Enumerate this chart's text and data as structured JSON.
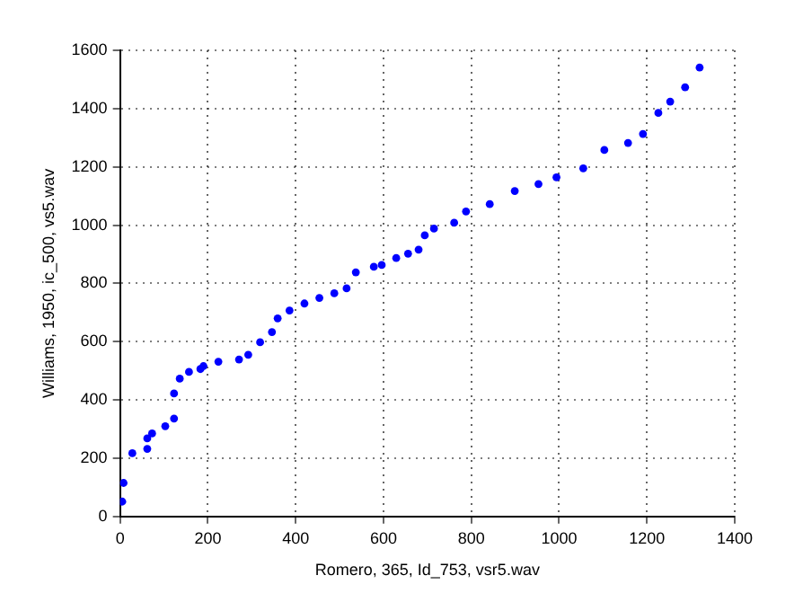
{
  "chart_data": {
    "type": "scatter",
    "xlabel": "Romero, 365, Id_753, vsr5.wav",
    "ylabel": "Williams, 1950, ic_500, vs5.wav",
    "x": [
      5,
      8,
      28,
      62,
      62,
      73,
      103,
      123,
      123,
      136,
      157,
      183,
      190,
      224,
      271,
      292,
      319,
      346,
      359,
      386,
      420,
      454,
      488,
      516,
      537,
      578,
      596,
      629,
      656,
      680,
      694,
      715,
      761,
      788,
      842,
      899,
      953,
      994,
      1055,
      1103,
      1157,
      1191,
      1226,
      1253,
      1287,
      1320
    ],
    "values": [
      51,
      115,
      217,
      232,
      268,
      285,
      310,
      336,
      422,
      473,
      496,
      506,
      516,
      531,
      539,
      555,
      598,
      633,
      680,
      707,
      731,
      750,
      766,
      783,
      838,
      857,
      863,
      887,
      902,
      916,
      965,
      988,
      1008,
      1047,
      1072,
      1117,
      1141,
      1164,
      1195,
      1258,
      1282,
      1313,
      1385,
      1424,
      1473,
      1541
    ],
    "color": "#0000ff",
    "marker": "circle",
    "xlim": [
      0,
      1400
    ],
    "xticks": [
      0,
      200,
      400,
      600,
      800,
      1000,
      1200,
      1400
    ],
    "ylim": [
      0,
      1600
    ],
    "yticks": [
      0,
      200,
      400,
      600,
      800,
      1000,
      1200,
      1400,
      1600
    ],
    "grid": true
  }
}
